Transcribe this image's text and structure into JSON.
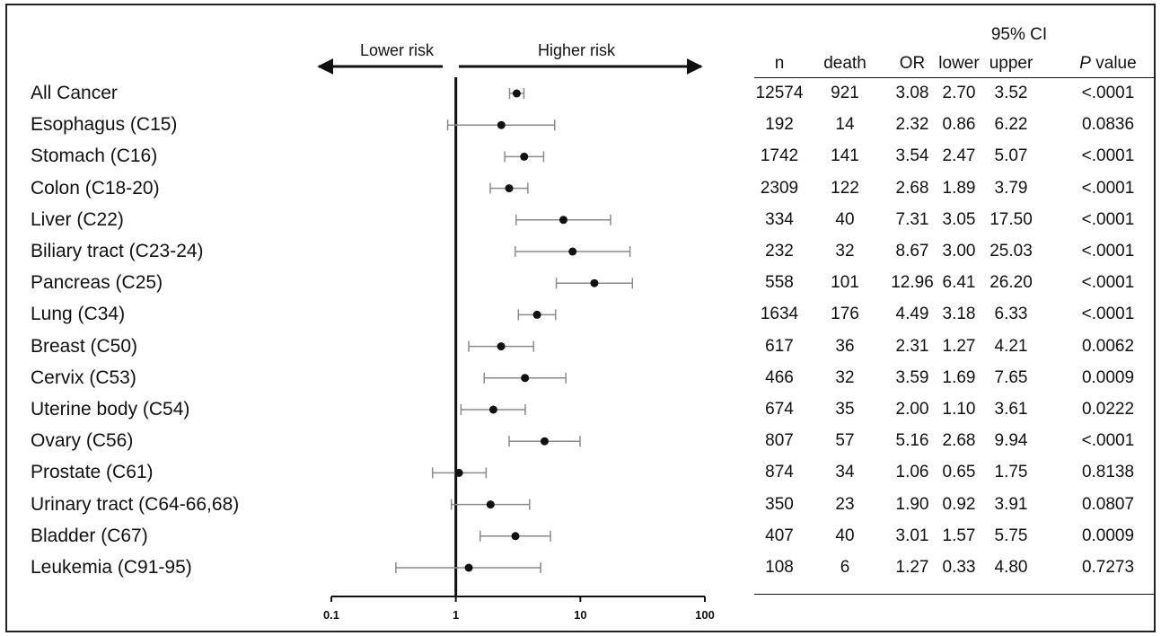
{
  "chart_data": {
    "type": "forest",
    "x_scale": "log",
    "xlim": [
      0.1,
      100
    ],
    "x_ticks": [
      "0.1",
      "1",
      "10",
      "100"
    ],
    "reference_line": 1,
    "direction_labels": {
      "left": "Lower risk",
      "right": "Higher risk"
    },
    "columns": {
      "ci_group": "95% CI",
      "n": "n",
      "death": "death",
      "or": "OR",
      "lower": "lower",
      "upper": "upper",
      "p_italic": "P",
      "p_rest": " value"
    },
    "rows": [
      {
        "label": "All Cancer",
        "n": "12574",
        "death": "921",
        "or": "3.08",
        "lower": "2.70",
        "upper": "3.52",
        "p": "<.0001"
      },
      {
        "label": "Esophagus (C15)",
        "n": "192",
        "death": "14",
        "or": "2.32",
        "lower": "0.86",
        "upper": "6.22",
        "p": "0.0836"
      },
      {
        "label": "Stomach (C16)",
        "n": "1742",
        "death": "141",
        "or": "3.54",
        "lower": "2.47",
        "upper": "5.07",
        "p": "<.0001"
      },
      {
        "label": "Colon (C18-20)",
        "n": "2309",
        "death": "122",
        "or": "2.68",
        "lower": "1.89",
        "upper": "3.79",
        "p": "<.0001"
      },
      {
        "label": "Liver (C22)",
        "n": "334",
        "death": "40",
        "or": "7.31",
        "lower": "3.05",
        "upper": "17.50",
        "p": "<.0001"
      },
      {
        "label": "Biliary tract (C23-24)",
        "n": "232",
        "death": "32",
        "or": "8.67",
        "lower": "3.00",
        "upper": "25.03",
        "p": "<.0001"
      },
      {
        "label": "Pancreas (C25)",
        "n": "558",
        "death": "101",
        "or": "12.96",
        "lower": "6.41",
        "upper": "26.20",
        "p": "<.0001"
      },
      {
        "label": "Lung (C34)",
        "n": "1634",
        "death": "176",
        "or": "4.49",
        "lower": "3.18",
        "upper": "6.33",
        "p": "<.0001"
      },
      {
        "label": "Breast (C50)",
        "n": "617",
        "death": "36",
        "or": "2.31",
        "lower": "1.27",
        "upper": "4.21",
        "p": "0.0062"
      },
      {
        "label": "Cervix (C53)",
        "n": "466",
        "death": "32",
        "or": "3.59",
        "lower": "1.69",
        "upper": "7.65",
        "p": "0.0009"
      },
      {
        "label": "Uterine body (C54)",
        "n": "674",
        "death": "35",
        "or": "2.00",
        "lower": "1.10",
        "upper": "3.61",
        "p": "0.0222"
      },
      {
        "label": "Ovary (C56)",
        "n": "807",
        "death": "57",
        "or": "5.16",
        "lower": "2.68",
        "upper": "9.94",
        "p": "<.0001"
      },
      {
        "label": "Prostate (C61)",
        "n": "874",
        "death": "34",
        "or": "1.06",
        "lower": "0.65",
        "upper": "1.75",
        "p": "0.8138"
      },
      {
        "label": "Urinary tract (C64-66,68)",
        "n": "350",
        "death": "23",
        "or": "1.90",
        "lower": "0.92",
        "upper": "3.91",
        "p": "0.0807"
      },
      {
        "label": "Bladder (C67)",
        "n": "407",
        "death": "40",
        "or": "3.01",
        "lower": "1.57",
        "upper": "5.75",
        "p": "0.0009"
      },
      {
        "label": "Leukemia (C91-95)",
        "n": "108",
        "death": "6",
        "or": "1.27",
        "lower": "0.33",
        "upper": "4.80",
        "p": "0.7273"
      }
    ],
    "colors": {
      "point": "#111111",
      "ci_line": "#8a8a8a",
      "axis": "#111111"
    }
  }
}
